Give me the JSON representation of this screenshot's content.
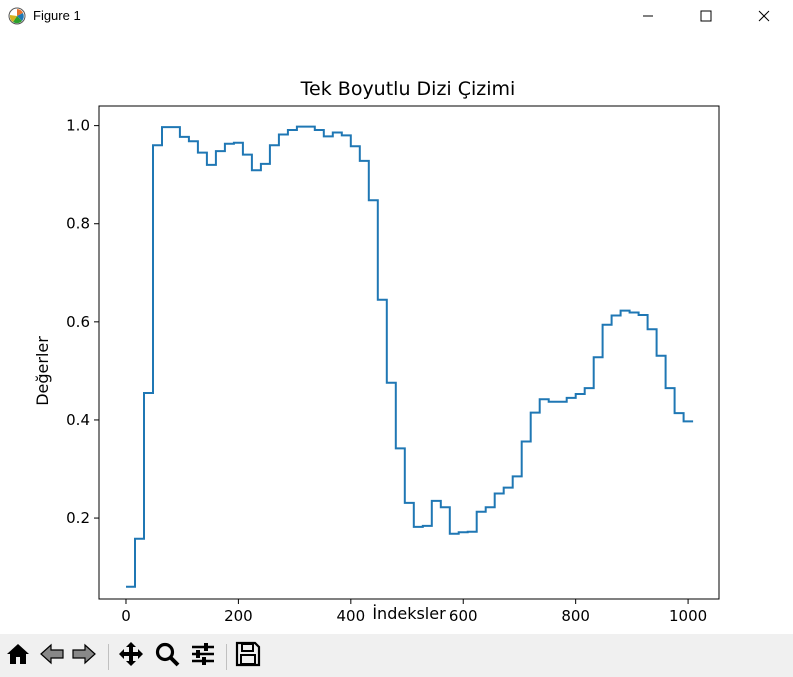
{
  "window": {
    "title": "Figure 1",
    "icons": {
      "app": "matplotlib-icon",
      "minimize": "minimize-icon",
      "maximize": "maximize-icon",
      "close": "close-icon"
    }
  },
  "toolbar": {
    "buttons": [
      {
        "name": "home-button",
        "icon": "home-icon"
      },
      {
        "name": "back-button",
        "icon": "arrow-left-icon"
      },
      {
        "name": "forward-button",
        "icon": "arrow-right-icon"
      },
      {
        "name": "pan-button",
        "icon": "move-icon"
      },
      {
        "name": "zoom-button",
        "icon": "magnifier-icon"
      },
      {
        "name": "configure-subplots-button",
        "icon": "sliders-icon"
      },
      {
        "name": "save-button",
        "icon": "floppy-disk-icon"
      }
    ]
  },
  "chart_data": {
    "type": "line",
    "drawstyle": "steps-post",
    "title": "Tek Boyutlu Dizi Çizimi",
    "xlabel": "İndeksler",
    "ylabel": "Değerler",
    "xlim": [
      -48,
      1055
    ],
    "ylim": [
      0.035,
      1.04
    ],
    "xticks": [
      0,
      200,
      400,
      600,
      800,
      1000
    ],
    "xtick_labels": [
      "0",
      "200",
      "400",
      "600",
      "800",
      "1000"
    ],
    "yticks": [
      0.2,
      0.4,
      0.6,
      0.8,
      1.0
    ],
    "ytick_labels": [
      "0.2",
      "0.4",
      "0.6",
      "0.8",
      "1.0"
    ],
    "grid": false,
    "series_color": "#1f77b4",
    "x": [
      0,
      16,
      32,
      48,
      64,
      80,
      96,
      112,
      128,
      144,
      160,
      176,
      192,
      208,
      224,
      240,
      256,
      272,
      288,
      304,
      320,
      336,
      352,
      368,
      384,
      400,
      416,
      432,
      448,
      464,
      480,
      496,
      512,
      528,
      544,
      560,
      576,
      592,
      608,
      624,
      640,
      656,
      672,
      688,
      704,
      720,
      736,
      752,
      768,
      784,
      800,
      816,
      832,
      848,
      864,
      880,
      896,
      912,
      928,
      944,
      960,
      976,
      992,
      1008
    ],
    "y": [
      0.06,
      0.158,
      0.455,
      0.96,
      0.997,
      0.997,
      0.977,
      0.968,
      0.945,
      0.92,
      0.948,
      0.963,
      0.965,
      0.941,
      0.909,
      0.922,
      0.96,
      0.982,
      0.991,
      0.998,
      0.998,
      0.991,
      0.978,
      0.986,
      0.98,
      0.958,
      0.928,
      0.848,
      0.645,
      0.476,
      0.342,
      0.231,
      0.182,
      0.184,
      0.235,
      0.222,
      0.168,
      0.171,
      0.172,
      0.213,
      0.222,
      0.25,
      0.262,
      0.285,
      0.356,
      0.415,
      0.442,
      0.437,
      0.437,
      0.445,
      0.453,
      0.465,
      0.528,
      0.594,
      0.613,
      0.623,
      0.619,
      0.614,
      0.585,
      0.531,
      0.465,
      0.414,
      0.397,
      0.397
    ]
  }
}
